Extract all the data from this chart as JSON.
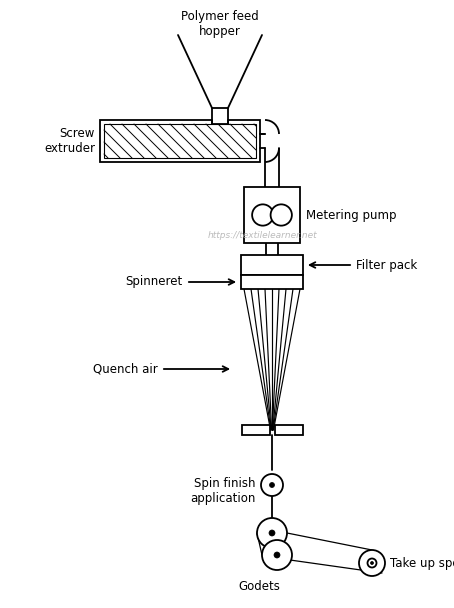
{
  "bg_color": "#ffffff",
  "line_color": "#000000",
  "watermark_color": "#b0b0b0",
  "watermark_text": "https://textilelearner.net",
  "labels": {
    "polymer_feed": "Polymer feed\nhopper",
    "screw_extruder": "Screw\nextruder",
    "metering_pump": "Metering pump",
    "filter_pack": "Filter pack",
    "spinneret": "Spinneret",
    "quench_air": "Quench air",
    "spin_finish": "Spin finish\napplication",
    "godets": "Godets",
    "take_up_spool": "Take up spool"
  }
}
